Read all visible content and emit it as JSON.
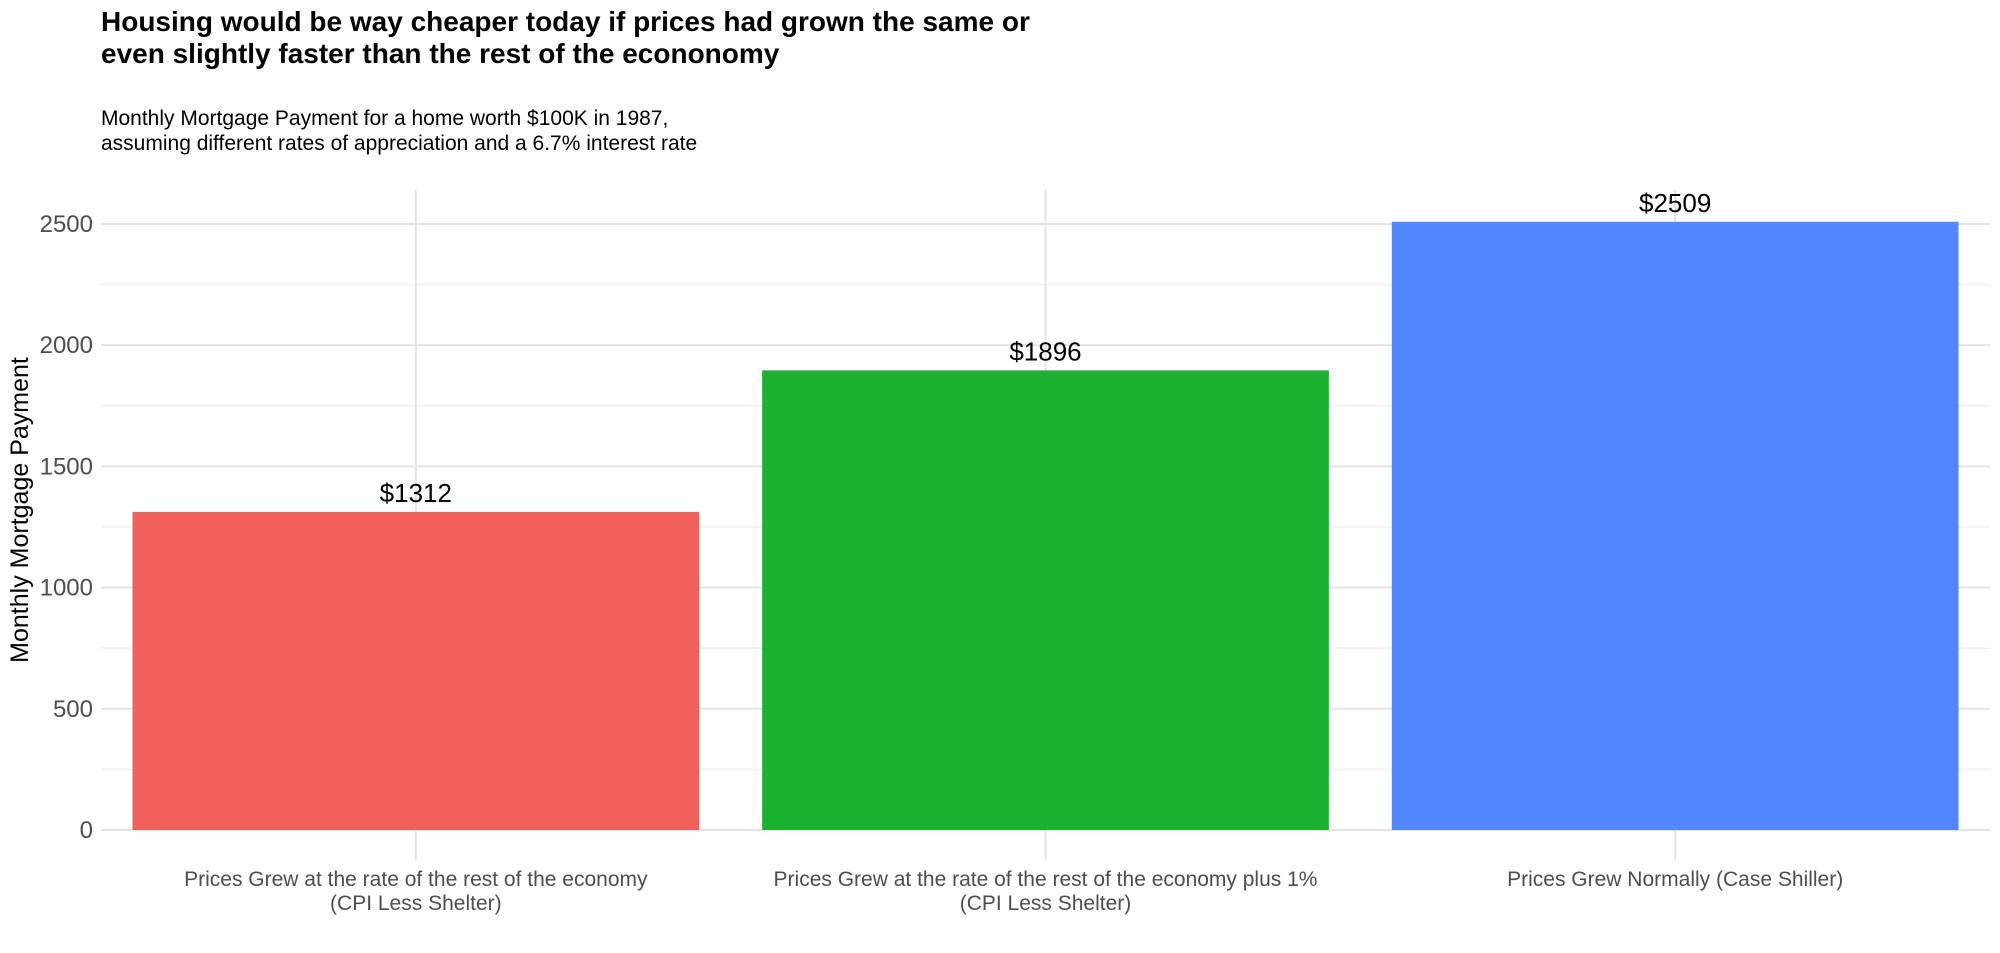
{
  "chart_data": {
    "type": "bar",
    "title": "Housing would be way cheaper today if prices had grown the same or\neven slightly faster than the rest of the econonomy",
    "subtitle": "Monthly Mortgage Payment for a home worth $100K in 1987,\nassuming different rates of appreciation and a 6.7% interest rate",
    "xlabel": "",
    "ylabel": "Monthly Mortgage Payment",
    "categories": [
      [
        "Prices Grew at the rate of the rest of the economy",
        "(CPI Less Shelter)"
      ],
      [
        "Prices Grew at the rate of the rest of the economy plus 1%",
        "(CPI Less Shelter)"
      ],
      [
        "Prices Grew Normally (Case Shiller)"
      ]
    ],
    "values": [
      1312,
      1896,
      2509
    ],
    "data_labels": [
      "$1312",
      "$1896",
      "$2509"
    ],
    "colors": [
      "#f2605c",
      "#1ab22f",
      "#5087ff"
    ],
    "ylim": [
      0,
      2640
    ],
    "yticks": [
      0,
      500,
      1000,
      1500,
      2000,
      2500
    ],
    "grid": true,
    "legend": "none"
  }
}
